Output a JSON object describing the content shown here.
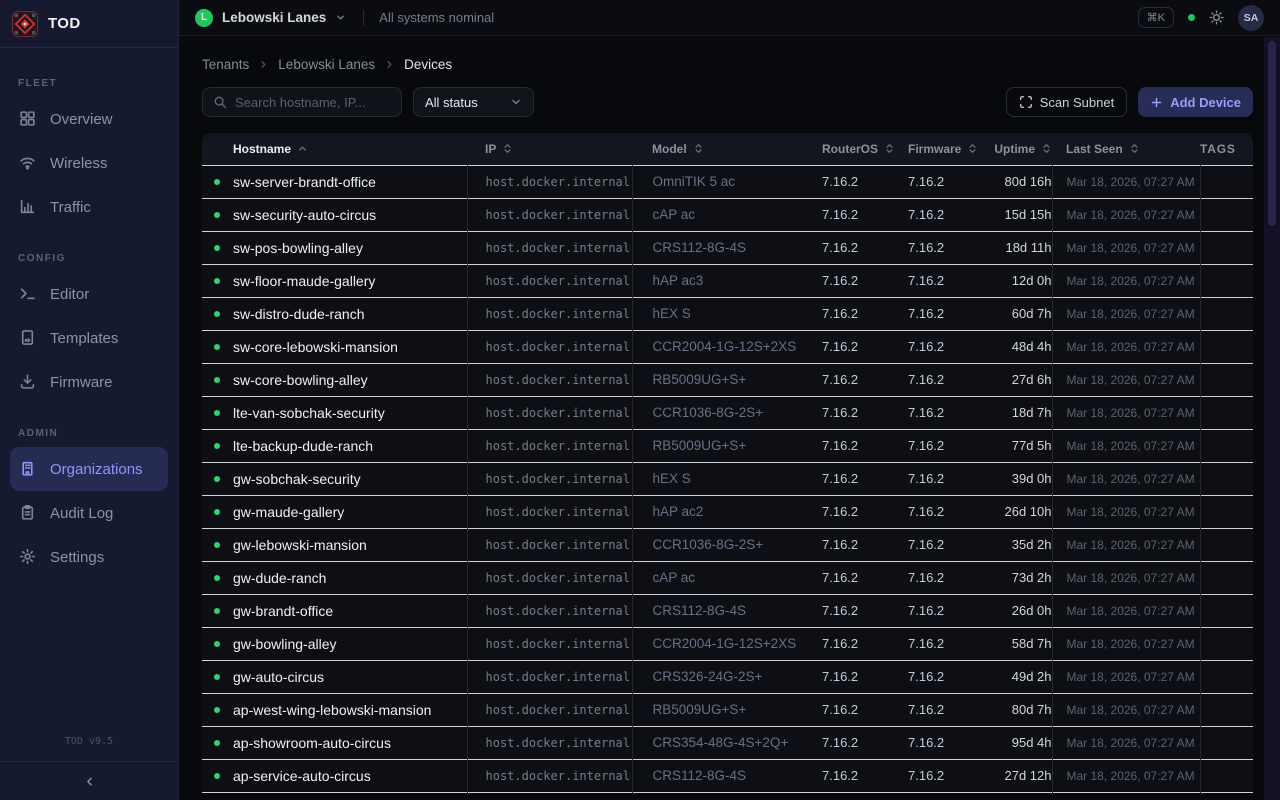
{
  "app": {
    "name": "TOD",
    "version": "TOD v9.5"
  },
  "topbar": {
    "tenant": "Lebowski Lanes",
    "tenant_initial": "L",
    "status_text": "All systems nominal",
    "shortcut": "⌘K",
    "avatar_initials": "SA"
  },
  "sidebar": {
    "sections": [
      {
        "label": "FLEET",
        "items": [
          {
            "label": "Overview",
            "icon": "grid-icon",
            "active": false
          },
          {
            "label": "Wireless",
            "icon": "wifi-icon",
            "active": false
          },
          {
            "label": "Traffic",
            "icon": "bar-chart-icon",
            "active": false
          }
        ]
      },
      {
        "label": "CONFIG",
        "items": [
          {
            "label": "Editor",
            "icon": "terminal-icon",
            "active": false
          },
          {
            "label": "Templates",
            "icon": "file-icon",
            "active": false
          },
          {
            "label": "Firmware",
            "icon": "download-icon",
            "active": false
          }
        ]
      },
      {
        "label": "ADMIN",
        "items": [
          {
            "label": "Organizations",
            "icon": "building-icon",
            "active": true
          },
          {
            "label": "Audit Log",
            "icon": "clipboard-icon",
            "active": false
          },
          {
            "label": "Settings",
            "icon": "gear-icon",
            "active": false
          }
        ]
      }
    ]
  },
  "breadcrumb": [
    "Tenants",
    "Lebowski Lanes",
    "Devices"
  ],
  "controls": {
    "search_placeholder": "Search hostname, IP...",
    "status_filter_value": "All status",
    "scan_label": "Scan Subnet",
    "add_label": "Add Device"
  },
  "table": {
    "columns": [
      {
        "label": "Hostname",
        "key": "hostname",
        "cls": "c-host",
        "sort": "asc"
      },
      {
        "label": "IP",
        "key": "ip",
        "cls": "c-ip",
        "sort": "both"
      },
      {
        "label": "Model",
        "key": "model",
        "cls": "c-model",
        "sort": "both"
      },
      {
        "label": "RouterOS",
        "key": "routeros",
        "cls": "c-os",
        "sort": "both"
      },
      {
        "label": "Firmware",
        "key": "firmware",
        "cls": "c-fw",
        "sort": "both"
      },
      {
        "label": "Uptime",
        "key": "uptime",
        "cls": "c-up",
        "sort": "both"
      },
      {
        "label": "Last Seen",
        "key": "last_seen",
        "cls": "c-seen",
        "sort": "both"
      },
      {
        "label": "TAGS",
        "key": "tags",
        "cls": "c-tags",
        "sort": "none"
      }
    ],
    "rows": [
      {
        "status": "online",
        "hostname": "sw-server-brandt-office",
        "ip": "host.docker.internal",
        "model": "OmniTIK 5 ac",
        "routeros": "7.16.2",
        "firmware": "7.16.2",
        "uptime": "80d 16h",
        "last_seen": "Mar 18, 2026, 07:27 AM",
        "tags": ""
      },
      {
        "status": "online",
        "hostname": "sw-security-auto-circus",
        "ip": "host.docker.internal",
        "model": "cAP ac",
        "routeros": "7.16.2",
        "firmware": "7.16.2",
        "uptime": "15d 15h",
        "last_seen": "Mar 18, 2026, 07:27 AM",
        "tags": ""
      },
      {
        "status": "online",
        "hostname": "sw-pos-bowling-alley",
        "ip": "host.docker.internal",
        "model": "CRS112-8G-4S",
        "routeros": "7.16.2",
        "firmware": "7.16.2",
        "uptime": "18d 11h",
        "last_seen": "Mar 18, 2026, 07:27 AM",
        "tags": ""
      },
      {
        "status": "online",
        "hostname": "sw-floor-maude-gallery",
        "ip": "host.docker.internal",
        "model": "hAP ac3",
        "routeros": "7.16.2",
        "firmware": "7.16.2",
        "uptime": "12d 0h",
        "last_seen": "Mar 18, 2026, 07:27 AM",
        "tags": ""
      },
      {
        "status": "online",
        "hostname": "sw-distro-dude-ranch",
        "ip": "host.docker.internal",
        "model": "hEX S",
        "routeros": "7.16.2",
        "firmware": "7.16.2",
        "uptime": "60d 7h",
        "last_seen": "Mar 18, 2026, 07:27 AM",
        "tags": ""
      },
      {
        "status": "online",
        "hostname": "sw-core-lebowski-mansion",
        "ip": "host.docker.internal",
        "model": "CCR2004-1G-12S+2XS",
        "routeros": "7.16.2",
        "firmware": "7.16.2",
        "uptime": "48d 4h",
        "last_seen": "Mar 18, 2026, 07:27 AM",
        "tags": ""
      },
      {
        "status": "online",
        "hostname": "sw-core-bowling-alley",
        "ip": "host.docker.internal",
        "model": "RB5009UG+S+",
        "routeros": "7.16.2",
        "firmware": "7.16.2",
        "uptime": "27d 6h",
        "last_seen": "Mar 18, 2026, 07:27 AM",
        "tags": ""
      },
      {
        "status": "online",
        "hostname": "lte-van-sobchak-security",
        "ip": "host.docker.internal",
        "model": "CCR1036-8G-2S+",
        "routeros": "7.16.2",
        "firmware": "7.16.2",
        "uptime": "18d 7h",
        "last_seen": "Mar 18, 2026, 07:27 AM",
        "tags": ""
      },
      {
        "status": "online",
        "hostname": "lte-backup-dude-ranch",
        "ip": "host.docker.internal",
        "model": "RB5009UG+S+",
        "routeros": "7.16.2",
        "firmware": "7.16.2",
        "uptime": "77d 5h",
        "last_seen": "Mar 18, 2026, 07:27 AM",
        "tags": ""
      },
      {
        "status": "online",
        "hostname": "gw-sobchak-security",
        "ip": "host.docker.internal",
        "model": "hEX S",
        "routeros": "7.16.2",
        "firmware": "7.16.2",
        "uptime": "39d 0h",
        "last_seen": "Mar 18, 2026, 07:27 AM",
        "tags": ""
      },
      {
        "status": "online",
        "hostname": "gw-maude-gallery",
        "ip": "host.docker.internal",
        "model": "hAP ac2",
        "routeros": "7.16.2",
        "firmware": "7.16.2",
        "uptime": "26d 10h",
        "last_seen": "Mar 18, 2026, 07:27 AM",
        "tags": ""
      },
      {
        "status": "online",
        "hostname": "gw-lebowski-mansion",
        "ip": "host.docker.internal",
        "model": "CCR1036-8G-2S+",
        "routeros": "7.16.2",
        "firmware": "7.16.2",
        "uptime": "35d 2h",
        "last_seen": "Mar 18, 2026, 07:27 AM",
        "tags": ""
      },
      {
        "status": "online",
        "hostname": "gw-dude-ranch",
        "ip": "host.docker.internal",
        "model": "cAP ac",
        "routeros": "7.16.2",
        "firmware": "7.16.2",
        "uptime": "73d 2h",
        "last_seen": "Mar 18, 2026, 07:27 AM",
        "tags": ""
      },
      {
        "status": "online",
        "hostname": "gw-brandt-office",
        "ip": "host.docker.internal",
        "model": "CRS112-8G-4S",
        "routeros": "7.16.2",
        "firmware": "7.16.2",
        "uptime": "26d 0h",
        "last_seen": "Mar 18, 2026, 07:27 AM",
        "tags": ""
      },
      {
        "status": "online",
        "hostname": "gw-bowling-alley",
        "ip": "host.docker.internal",
        "model": "CCR2004-1G-12S+2XS",
        "routeros": "7.16.2",
        "firmware": "7.16.2",
        "uptime": "58d 7h",
        "last_seen": "Mar 18, 2026, 07:27 AM",
        "tags": ""
      },
      {
        "status": "online",
        "hostname": "gw-auto-circus",
        "ip": "host.docker.internal",
        "model": "CRS326-24G-2S+",
        "routeros": "7.16.2",
        "firmware": "7.16.2",
        "uptime": "49d 2h",
        "last_seen": "Mar 18, 2026, 07:27 AM",
        "tags": ""
      },
      {
        "status": "online",
        "hostname": "ap-west-wing-lebowski-mansion",
        "ip": "host.docker.internal",
        "model": "RB5009UG+S+",
        "routeros": "7.16.2",
        "firmware": "7.16.2",
        "uptime": "80d 7h",
        "last_seen": "Mar 18, 2026, 07:27 AM",
        "tags": ""
      },
      {
        "status": "online",
        "hostname": "ap-showroom-auto-circus",
        "ip": "host.docker.internal",
        "model": "CRS354-48G-4S+2Q+",
        "routeros": "7.16.2",
        "firmware": "7.16.2",
        "uptime": "95d 4h",
        "last_seen": "Mar 18, 2026, 07:27 AM",
        "tags": ""
      },
      {
        "status": "online",
        "hostname": "ap-service-auto-circus",
        "ip": "host.docker.internal",
        "model": "CRS112-8G-4S",
        "routeros": "7.16.2",
        "firmware": "7.16.2",
        "uptime": "27d 12h",
        "last_seen": "Mar 18, 2026, 07:27 AM",
        "tags": ""
      }
    ]
  },
  "colors": {
    "accent": "#8f97f8",
    "online": "#35d073",
    "health": "#22c55e",
    "sidebar_bg": "#151a31",
    "active_item_bg": "#252b53"
  }
}
